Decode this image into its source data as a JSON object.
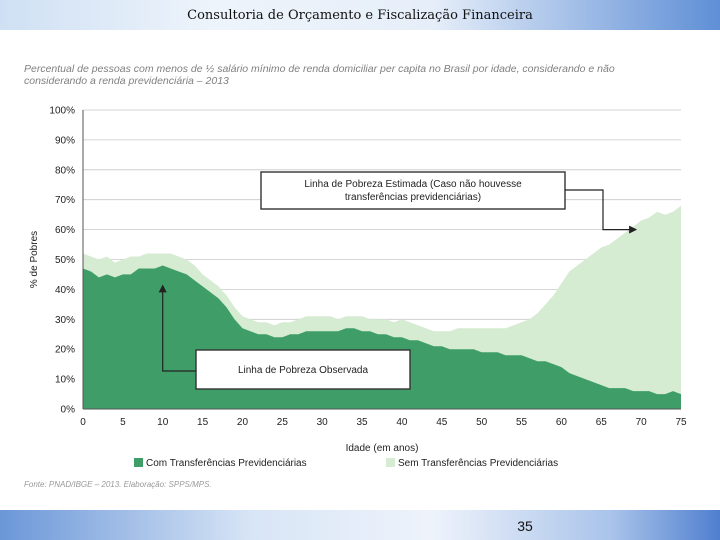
{
  "slide": {
    "header_title": "Consultoria de Orçamento e Fiscalização Financeira",
    "page_number": "35",
    "source_note": "Fonte: PNAD/IBGE – 2013. Elaboração: SPPS/MPS.",
    "colors": {
      "header_accent": "#5f8fd6"
    }
  },
  "chart_data": {
    "type": "area",
    "title": "Percentual de pessoas com menos de ½ salário mínimo de renda domiciliar per capita no Brasil por idade, considerando e não considerando a renda previdenciária – 2013",
    "title_line1": "Percentual de pessoas com menos de ½ salário mínimo de renda domiciliar per capita no Brasil por idade, considerando e não",
    "title_line2": "considerando a renda previdenciária – 2013",
    "xlabel": "Idade (em anos)",
    "ylabel": "% de Pobres",
    "xlim": [
      0,
      75
    ],
    "ylim": [
      0,
      100
    ],
    "x_ticks": [
      0,
      5,
      10,
      15,
      20,
      25,
      30,
      35,
      40,
      45,
      50,
      55,
      60,
      65,
      70,
      75
    ],
    "y_ticks": [
      0,
      10,
      20,
      30,
      40,
      50,
      60,
      70,
      80,
      90,
      100
    ],
    "y_tick_labels": [
      "0%",
      "10%",
      "20%",
      "30%",
      "40%",
      "50%",
      "60%",
      "70%",
      "80%",
      "90%",
      "100%"
    ],
    "grid": true,
    "legend_position": "bottom",
    "x": [
      0,
      1,
      2,
      3,
      4,
      5,
      6,
      7,
      8,
      9,
      10,
      11,
      12,
      13,
      14,
      15,
      16,
      17,
      18,
      19,
      20,
      21,
      22,
      23,
      24,
      25,
      26,
      27,
      28,
      29,
      30,
      31,
      32,
      33,
      34,
      35,
      36,
      37,
      38,
      39,
      40,
      41,
      42,
      43,
      44,
      45,
      46,
      47,
      48,
      49,
      50,
      51,
      52,
      53,
      54,
      55,
      56,
      57,
      58,
      59,
      60,
      61,
      62,
      63,
      64,
      65,
      66,
      67,
      68,
      69,
      70,
      71,
      72,
      73,
      74,
      75
    ],
    "series": [
      {
        "name": "Com Transferências Previdenciárias",
        "color": "#3f9e68",
        "values": [
          47,
          46,
          44,
          45,
          44,
          45,
          45,
          47,
          47,
          47,
          48,
          47,
          46,
          45,
          43,
          41,
          39,
          37,
          34,
          30,
          27,
          26,
          25,
          25,
          24,
          24,
          25,
          25,
          26,
          26,
          26,
          26,
          26,
          27,
          27,
          26,
          26,
          25,
          25,
          24,
          24,
          23,
          23,
          22,
          21,
          21,
          20,
          20,
          20,
          20,
          19,
          19,
          19,
          18,
          18,
          18,
          17,
          16,
          16,
          15,
          14,
          12,
          11,
          10,
          9,
          8,
          7,
          7,
          7,
          6,
          6,
          6,
          5,
          5,
          6,
          5
        ]
      },
      {
        "name": "Sem Transferências Previdenciárias",
        "color": "#d6ecd2",
        "values": [
          52,
          51,
          50,
          51,
          49,
          50,
          51,
          51,
          52,
          52,
          52,
          52,
          51,
          50,
          48,
          45,
          43,
          41,
          38,
          34,
          31,
          30,
          29,
          29,
          28,
          29,
          29,
          30,
          31,
          31,
          31,
          31,
          30,
          31,
          31,
          31,
          30,
          30,
          30,
          29,
          30,
          29,
          28,
          27,
          26,
          26,
          26,
          27,
          27,
          27,
          27,
          27,
          27,
          27,
          28,
          29,
          30,
          32,
          35,
          38,
          42,
          46,
          48,
          50,
          52,
          54,
          55,
          57,
          59,
          61,
          63,
          64,
          66,
          65,
          66,
          68
        ]
      }
    ],
    "annotations": [
      {
        "text_line1": "Linha de Pobreza Estimada (Caso não houvesse",
        "text_line2": "transferências previdenciárias)",
        "points_to_age": 70,
        "points_to_value": 60
      },
      {
        "text_line1": "Linha de Pobreza Observada",
        "points_to_age": 10,
        "points_to_value": 43
      }
    ]
  }
}
